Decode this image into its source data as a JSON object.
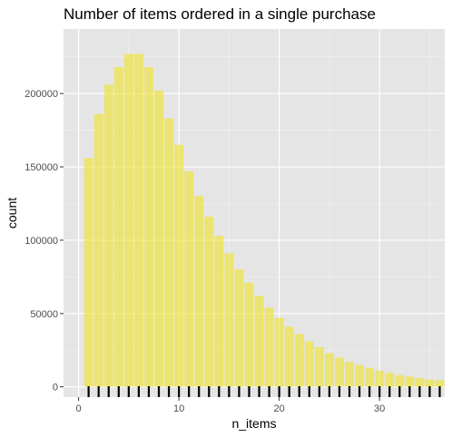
{
  "chart_data": {
    "type": "bar",
    "title": "Number of items ordered in a single purchase",
    "xlabel": "n_items",
    "ylabel": "count",
    "x": [
      1,
      2,
      3,
      4,
      5,
      6,
      7,
      8,
      9,
      10,
      11,
      12,
      13,
      14,
      15,
      16,
      17,
      18,
      19,
      20,
      21,
      22,
      23,
      24,
      25,
      26,
      27,
      28,
      29,
      30,
      31,
      32,
      33,
      34,
      35,
      36
    ],
    "values": [
      156000,
      186000,
      206000,
      218000,
      227000,
      227000,
      218000,
      202000,
      183000,
      165000,
      147000,
      130000,
      116000,
      103000,
      91000,
      80000,
      71000,
      62000,
      54000,
      47000,
      41000,
      36000,
      31000,
      27000,
      23000,
      20000,
      17000,
      15000,
      13000,
      11000,
      9500,
      8000,
      7000,
      6000,
      5000,
      4500
    ],
    "xlim": [
      -1.5,
      36.5
    ],
    "ylim": [
      -7000,
      244000
    ],
    "x_ticks": [
      0,
      10,
      20,
      30
    ],
    "x_tick_labels": [
      "0",
      "10",
      "20",
      "30"
    ],
    "y_ticks": [
      0,
      50000,
      100000,
      150000,
      200000
    ],
    "y_tick_labels": [
      "0",
      "50000",
      "100000",
      "150000",
      "200000"
    ],
    "rug": true,
    "grid": true,
    "bar_color": "#f0e442",
    "bar_opacity": 0.7,
    "panel_background": "#e5e5e5",
    "rug_color": "#000000"
  }
}
